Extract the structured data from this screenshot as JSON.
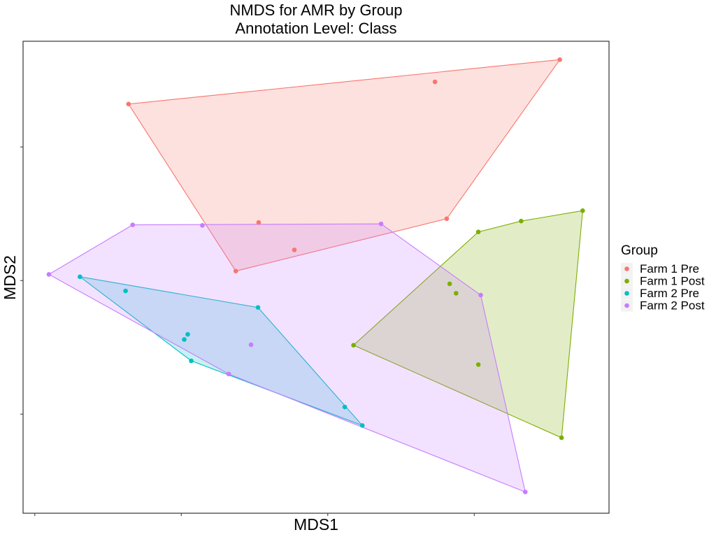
{
  "chart_data": {
    "type": "scatter",
    "title": "NMDS for AMR by Group",
    "subtitle": "Annotation Level: Class",
    "xlabel": "MDS1",
    "ylabel": "MDS2",
    "xlim": [
      0,
      100
    ],
    "ylim": [
      0,
      100
    ],
    "grid": false,
    "legend_title": "Group",
    "legend_position": "right",
    "series": [
      {
        "name": "Farm 1 Pre",
        "color": "#F8766D",
        "points": [
          [
            18,
            86.7
          ],
          [
            36.3,
            51.3
          ],
          [
            40.2,
            61.6
          ],
          [
            46.3,
            55.8
          ],
          [
            70.3,
            91.4
          ],
          [
            72.3,
            62.4
          ],
          [
            91.6,
            96.1
          ]
        ],
        "hull": [
          [
            18,
            86.7
          ],
          [
            36.3,
            51.3
          ],
          [
            72.3,
            62.4
          ],
          [
            91.6,
            96.1
          ]
        ]
      },
      {
        "name": "Farm 1 Post",
        "color": "#7CAE00",
        "points": [
          [
            56.4,
            35.6
          ],
          [
            72.8,
            48.6
          ],
          [
            73.9,
            46.6
          ],
          [
            77.7,
            31.5
          ],
          [
            77.7,
            59.6
          ],
          [
            85,
            61.9
          ],
          [
            95.5,
            64.1
          ],
          [
            91.9,
            16
          ]
        ],
        "hull": [
          [
            56.4,
            35.6
          ],
          [
            91.9,
            16
          ],
          [
            95.5,
            64.1
          ],
          [
            85,
            61.9
          ],
          [
            77.7,
            59.6
          ]
        ]
      },
      {
        "name": "Farm 2 Pre",
        "color": "#00BFC4",
        "points": [
          [
            9.7,
            50.1
          ],
          [
            17.5,
            47.1
          ],
          [
            27.5,
            36.8
          ],
          [
            28.1,
            37.9
          ],
          [
            28.7,
            32.3
          ],
          [
            40.1,
            43.6
          ],
          [
            54.9,
            22.5
          ],
          [
            57.9,
            18.6
          ]
        ],
        "hull": [
          [
            9.7,
            50.1
          ],
          [
            40.1,
            43.6
          ],
          [
            57.9,
            18.6
          ],
          [
            28.7,
            32.3
          ]
        ]
      },
      {
        "name": "Farm 2 Post",
        "color": "#C77CFF",
        "points": [
          [
            4.4,
            50.6
          ],
          [
            18.7,
            61.1
          ],
          [
            30.6,
            61
          ],
          [
            61.1,
            61.3
          ],
          [
            35.1,
            29.5
          ],
          [
            38.9,
            35.7
          ],
          [
            78.1,
            46.2
          ],
          [
            85.7,
            4.5
          ]
        ],
        "hull": [
          [
            4.4,
            50.6
          ],
          [
            18.7,
            61.1
          ],
          [
            61.1,
            61.3
          ],
          [
            78.1,
            46.2
          ],
          [
            85.7,
            4.5
          ],
          [
            35.1,
            29.5
          ]
        ]
      }
    ]
  }
}
